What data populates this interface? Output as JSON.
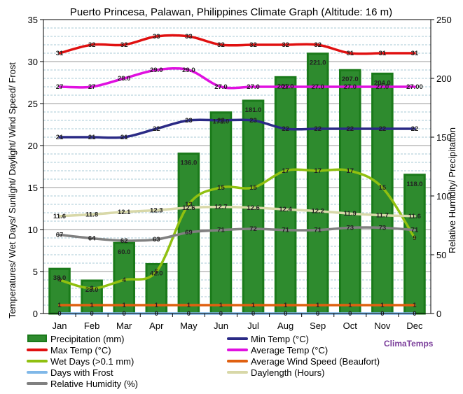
{
  "chart_data": {
    "type": "bar",
    "title": "Puerto Princesa, Palawan, Philippines Climate Graph (Altitude: 16 m)",
    "ylabel_left": "Temperatures/ Wet Days/ Sunlight/ Daylight/ Wind Speed/ Frost",
    "ylabel_right": "Relative Humidity/ Precipitation",
    "ylim_left": [
      0,
      35
    ],
    "ylim_right": [
      0,
      250
    ],
    "yticks_left": [
      "0",
      "5",
      "10",
      "15",
      "20",
      "25",
      "30",
      "35"
    ],
    "yticks_right": [
      "0",
      "50",
      "100",
      "150",
      "200",
      "250"
    ],
    "grid": true,
    "legend_position": "bottom",
    "categories": [
      "Jan",
      "Feb",
      "Mar",
      "Apr",
      "May",
      "Jun",
      "Jul",
      "Aug",
      "Sep",
      "Oct",
      "Nov",
      "Dec"
    ],
    "watermark": "ClimaTemps",
    "bars": {
      "name": "Precipitation (mm)",
      "axis": "right",
      "color": "#2e8b2e",
      "values": [
        38.0,
        28.0,
        60.0,
        42.0,
        136.0,
        171.0,
        181.0,
        201.0,
        221.0,
        207.0,
        204.0,
        118.0
      ]
    },
    "series": [
      {
        "name": "Max Temp (°C)",
        "axis": "left",
        "color": "#e01010",
        "values": [
          31,
          32,
          32,
          33,
          33,
          32,
          32,
          32,
          32,
          31,
          31,
          31
        ],
        "labels": [
          "31",
          "32",
          "32",
          "33",
          "33",
          "32",
          "32",
          "32",
          "32",
          "31",
          "31",
          "31"
        ]
      },
      {
        "name": "Min Temp (°C)",
        "axis": "left",
        "color": "#2a2a85",
        "values": [
          21,
          21,
          21,
          22,
          23,
          23,
          23,
          22,
          22,
          22,
          22,
          22
        ],
        "labels": [
          "21",
          "21",
          "21",
          "22",
          "23",
          "23",
          "23",
          "22",
          "22",
          "22",
          "22",
          "22"
        ]
      },
      {
        "name": "Average Temp (°C)",
        "axis": "left",
        "color": "#e010e0",
        "values": [
          27,
          27,
          28,
          29,
          29,
          27,
          27,
          27,
          27,
          27,
          27,
          27
        ],
        "labels": [
          "27",
          "27",
          "28.0",
          "29.0",
          "29.0",
          "27.0",
          "27.0",
          "27",
          "27.0",
          "27.0",
          "27.0",
          "27.00"
        ]
      },
      {
        "name": "Wet Days (>0.1 mm)",
        "axis": "left",
        "color": "#90c010",
        "values": [
          4,
          3,
          4,
          5,
          13,
          15,
          15,
          17,
          17,
          17,
          15,
          9
        ],
        "labels": [
          "4",
          "3",
          "4",
          "5",
          "13",
          "15",
          "15",
          "17",
          "17",
          "17",
          "15",
          "9"
        ]
      },
      {
        "name": "Average Wind Speed (Beaufort)",
        "axis": "left",
        "color": "#e06010",
        "values": [
          1,
          1,
          1,
          1,
          1,
          1,
          1,
          1,
          1,
          1,
          1,
          1
        ],
        "labels": [
          "1",
          "1",
          "1",
          "1",
          "1",
          "1",
          "1",
          "1",
          "1",
          "1",
          "1",
          "1"
        ]
      },
      {
        "name": "Days with Frost",
        "axis": "left",
        "color": "#80b8e8",
        "values": [
          0,
          0,
          0,
          0,
          0,
          0,
          0,
          0,
          0,
          0,
          0,
          0
        ],
        "labels": [
          "0",
          "0",
          "0",
          "0",
          "0",
          "0",
          "0",
          "0",
          "0",
          "0",
          "0",
          "0"
        ]
      },
      {
        "name": "Daylength (Hours)",
        "axis": "left",
        "color": "#d8d8a8",
        "values": [
          11.6,
          11.8,
          12.1,
          12.3,
          12.6,
          12.7,
          12.6,
          12.4,
          12.2,
          11.9,
          11.7,
          11.6
        ],
        "labels": [
          "11.6",
          "11.8",
          "12.1",
          "12.3",
          "12.6",
          "12.7",
          "12.6",
          "12.4",
          "12.2",
          "11.9",
          "11.7",
          "11.6"
        ]
      },
      {
        "name": "Relative Humidity (%)",
        "axis": "right",
        "color": "#808080",
        "values": [
          67,
          64,
          62,
          63,
          69,
          71,
          72,
          71,
          71,
          73,
          73,
          71
        ],
        "labels": [
          "67",
          "64",
          "62",
          "63",
          "69",
          "71",
          "72",
          "71",
          "71",
          "73",
          "73",
          "71"
        ]
      }
    ]
  }
}
